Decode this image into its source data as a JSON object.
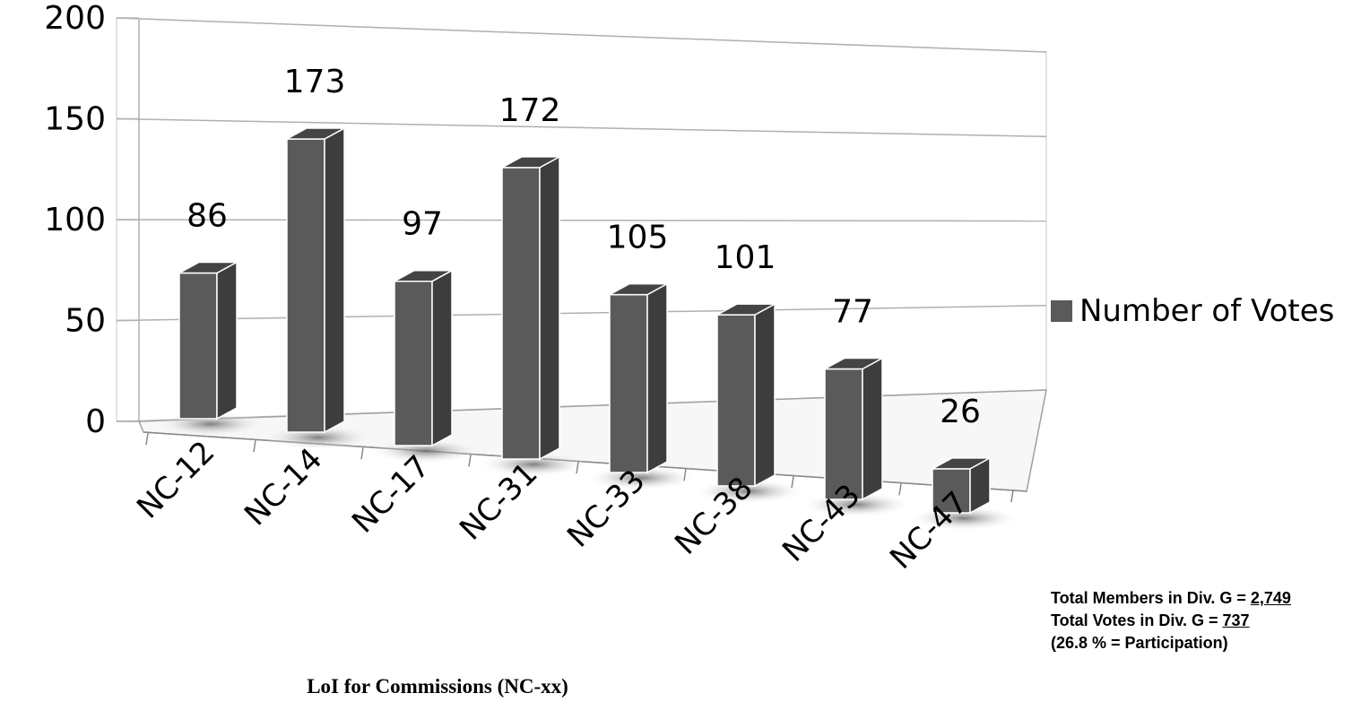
{
  "chart_data": {
    "type": "bar",
    "three_d": true,
    "categories": [
      "NC-12",
      "NC-14",
      "NC-17",
      "NC-31",
      "NC-33",
      "NC-38",
      "NC-43",
      "NC-47"
    ],
    "series": [
      {
        "name": "Number of Votes",
        "values": [
          86,
          173,
          97,
          172,
          105,
          101,
          77,
          26
        ]
      }
    ],
    "data_labels": [
      "86",
      "173",
      "97",
      "172",
      "105",
      "101",
      "77",
      "26"
    ],
    "ylim": [
      0,
      200
    ],
    "yticks": [
      "0",
      "50",
      "100",
      "150",
      "200"
    ],
    "xlabel": "LoI for Commissions (NC-xx)",
    "ylabel": "",
    "title": "",
    "grid": true,
    "legend_position": "right",
    "bar_color": "#5a5a5a"
  },
  "notes": {
    "members_prefix": "Total Members in Div. G = ",
    "members_value": "2,749",
    "votes_prefix": "Total Votes in Div. G = ",
    "votes_value": "737",
    "participation": "(26.8 % = Participation)"
  }
}
